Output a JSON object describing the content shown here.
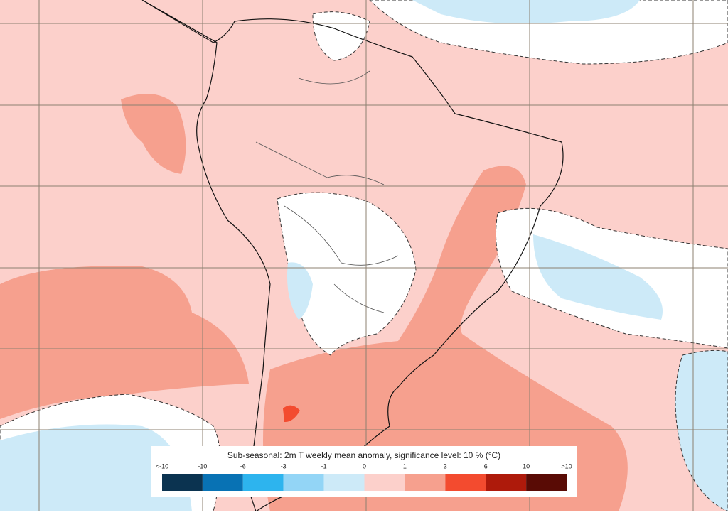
{
  "legend": {
    "title": "Sub-seasonal: 2m T weekly mean anomaly, significance level: 10 % (°C)",
    "labels": [
      "<-10",
      "-10",
      "-6",
      "-3",
      "-1",
      "0",
      "1",
      "3",
      "6",
      "10",
      ">10"
    ],
    "colors": [
      "#0b3350",
      "#0872b4",
      "#2db4ee",
      "#93d5f6",
      "#cdeaf8",
      "#fcd0cb",
      "#f6a08e",
      "#f34b2f",
      "#ae1a0b",
      "#590b05"
    ]
  }
}
